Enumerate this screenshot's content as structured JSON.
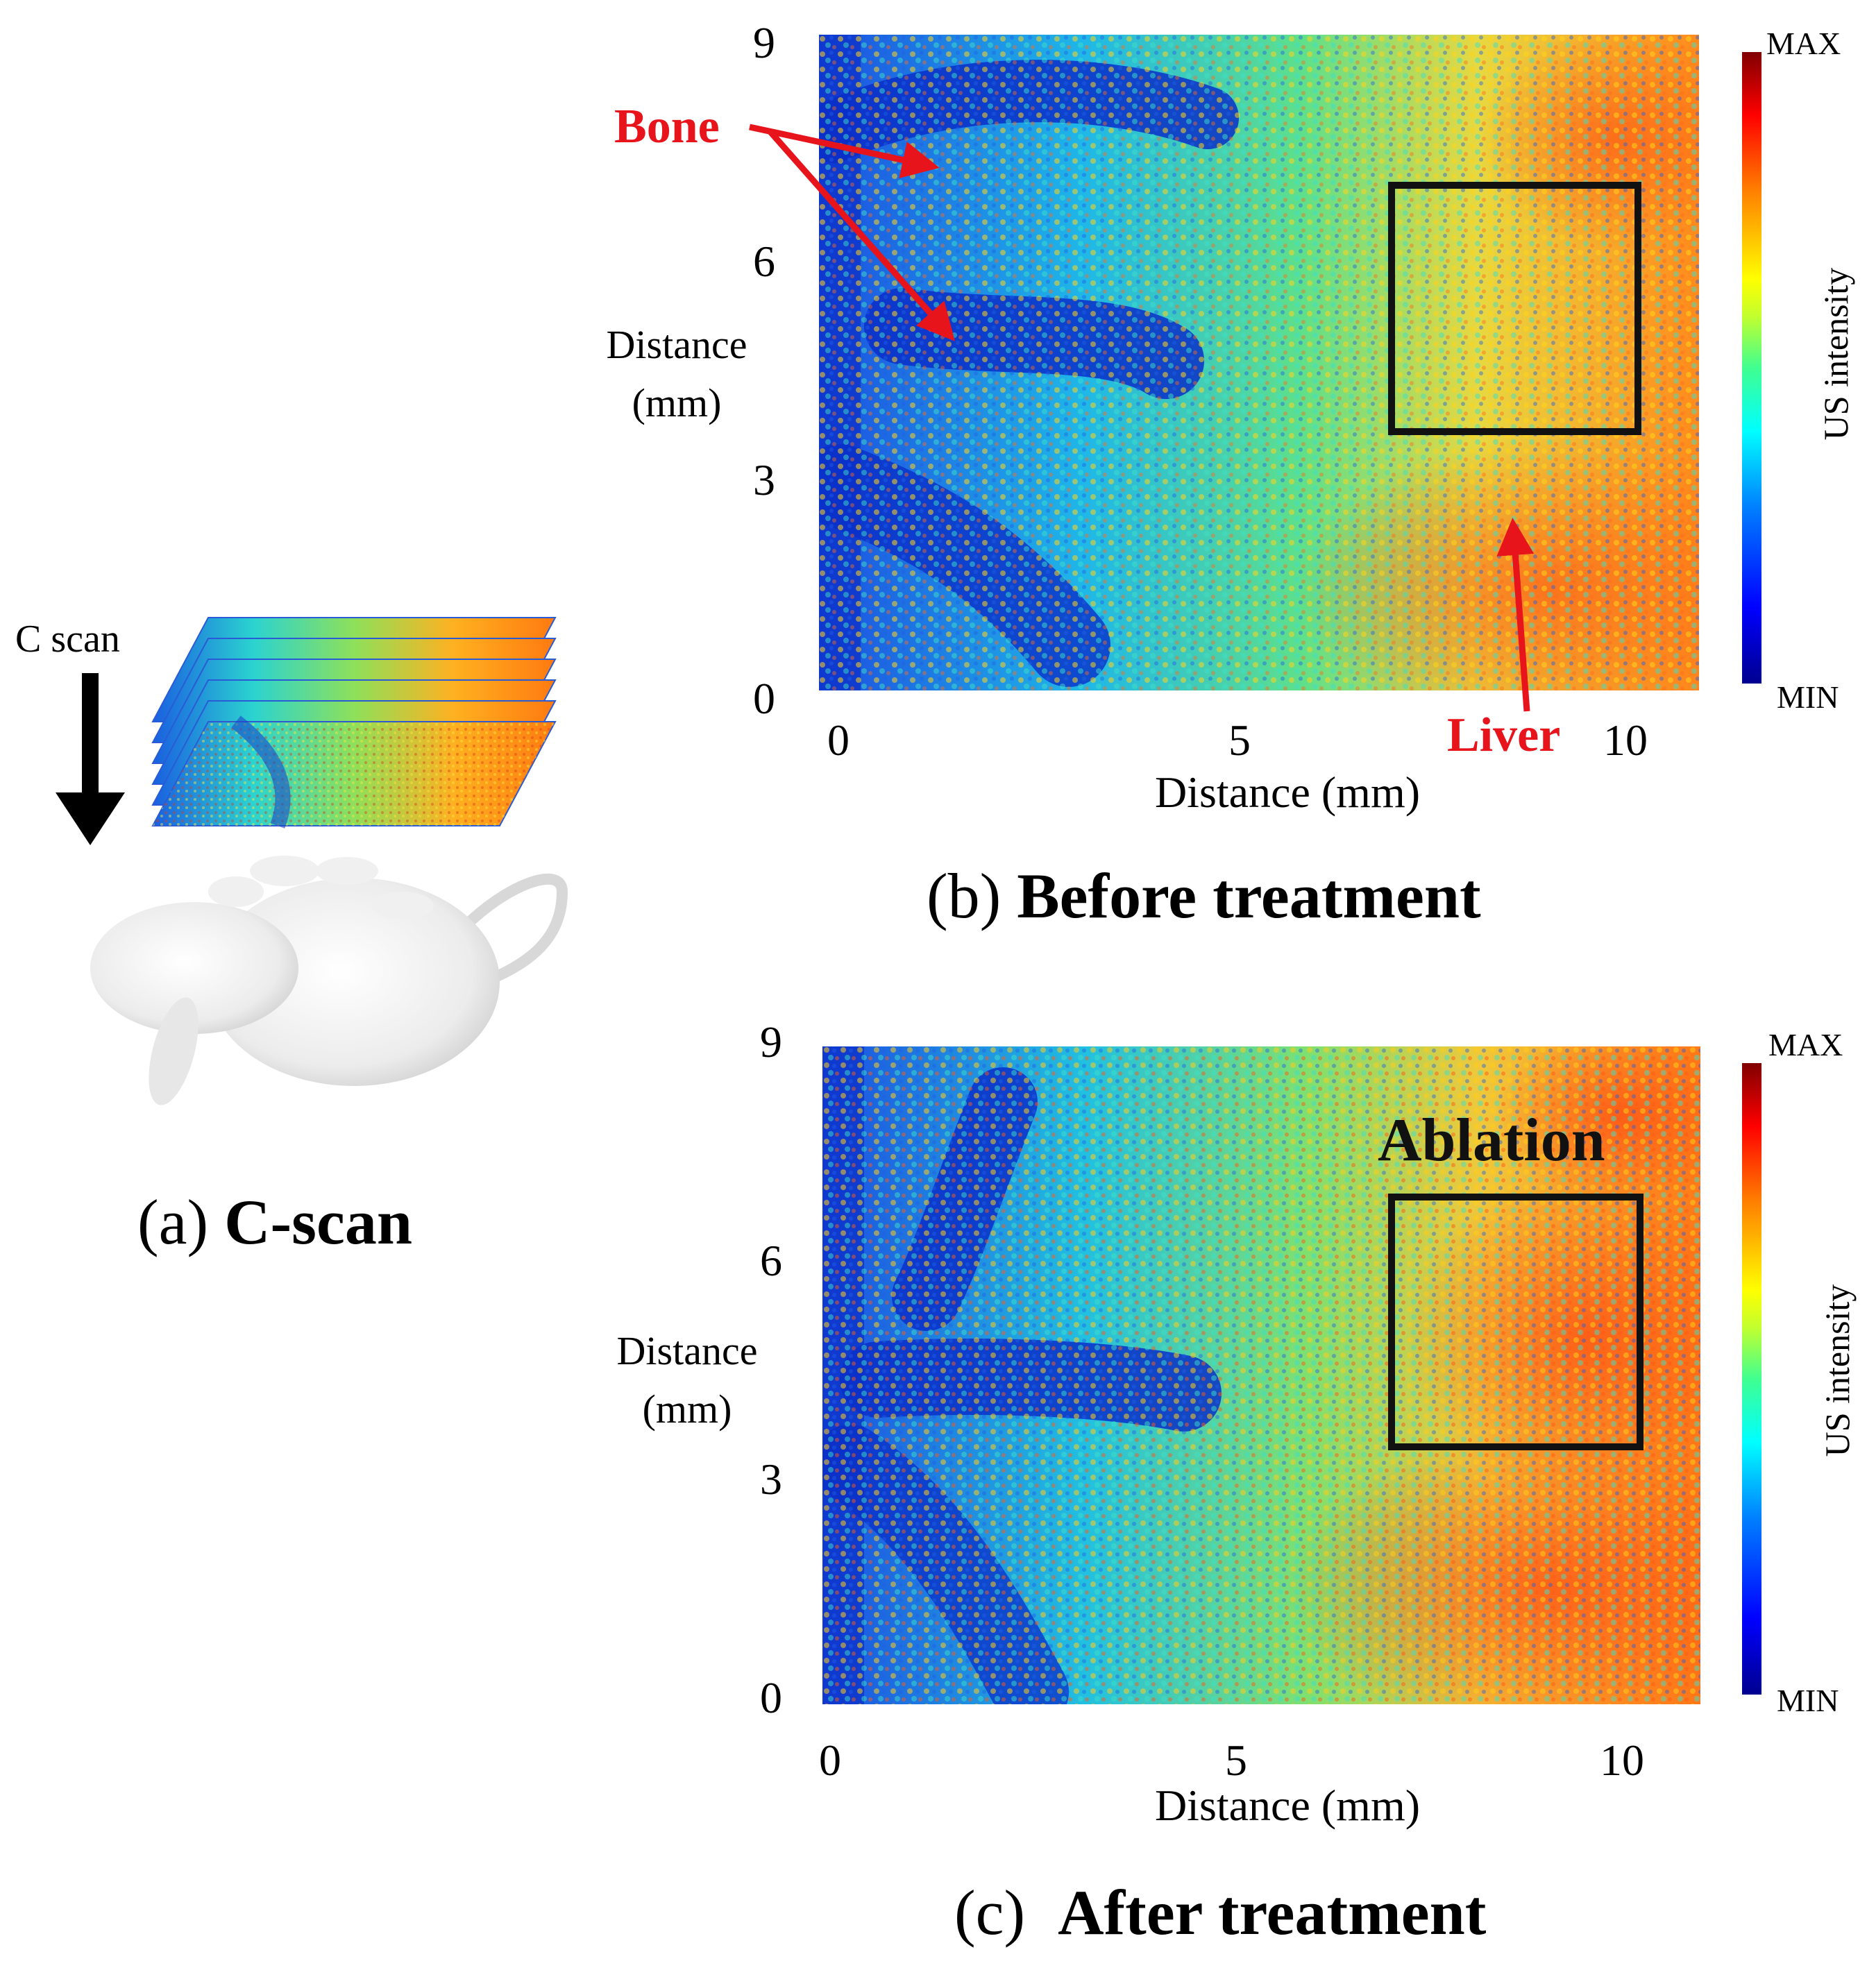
{
  "panel_a": {
    "scan_label": "C scan",
    "caption_prefix": "(a)",
    "caption_bold": "C-scan"
  },
  "panel_b": {
    "caption_prefix": "(b)",
    "caption_bold": "Before treatment",
    "annotation_bone": "Bone",
    "annotation_liver": "Liver",
    "colorbar": {
      "max_label": "MAX",
      "min_label": "MIN",
      "title": "US intensity"
    }
  },
  "panel_c": {
    "caption_prefix": "(c)",
    "caption_bold": "After treatment",
    "annotation_ablation": "Ablation",
    "colorbar": {
      "max_label": "MAX",
      "min_label": "MIN",
      "title": "US intensity"
    }
  },
  "chart_data": [
    {
      "type": "heatmap",
      "panel": "b",
      "xlabel": "Distance (mm)",
      "ylabel_line1": "Distance",
      "ylabel_line2": "(mm)",
      "xlim": [
        0,
        10.5
      ],
      "ylim": [
        0,
        9
      ],
      "x_ticks": [
        "0",
        "5",
        "10"
      ],
      "y_ticks": [
        "0",
        "3",
        "6",
        "9"
      ],
      "colormap": "jet",
      "roi_box_mm": {
        "x0": 6.8,
        "x1": 9.8,
        "y0": 3.5,
        "y1": 7.0
      }
    },
    {
      "type": "heatmap",
      "panel": "c",
      "xlabel": "Distance (mm)",
      "ylabel_line1": "Distance",
      "ylabel_line2": "(mm)",
      "xlim": [
        0,
        10.5
      ],
      "ylim": [
        0,
        9
      ],
      "x_ticks": [
        "0",
        "5",
        "10"
      ],
      "y_ticks": [
        "0",
        "3",
        "6",
        "9"
      ],
      "colormap": "jet",
      "roi_box_mm": {
        "x0": 6.8,
        "x1": 9.8,
        "y0": 3.5,
        "y1": 7.0
      }
    }
  ]
}
